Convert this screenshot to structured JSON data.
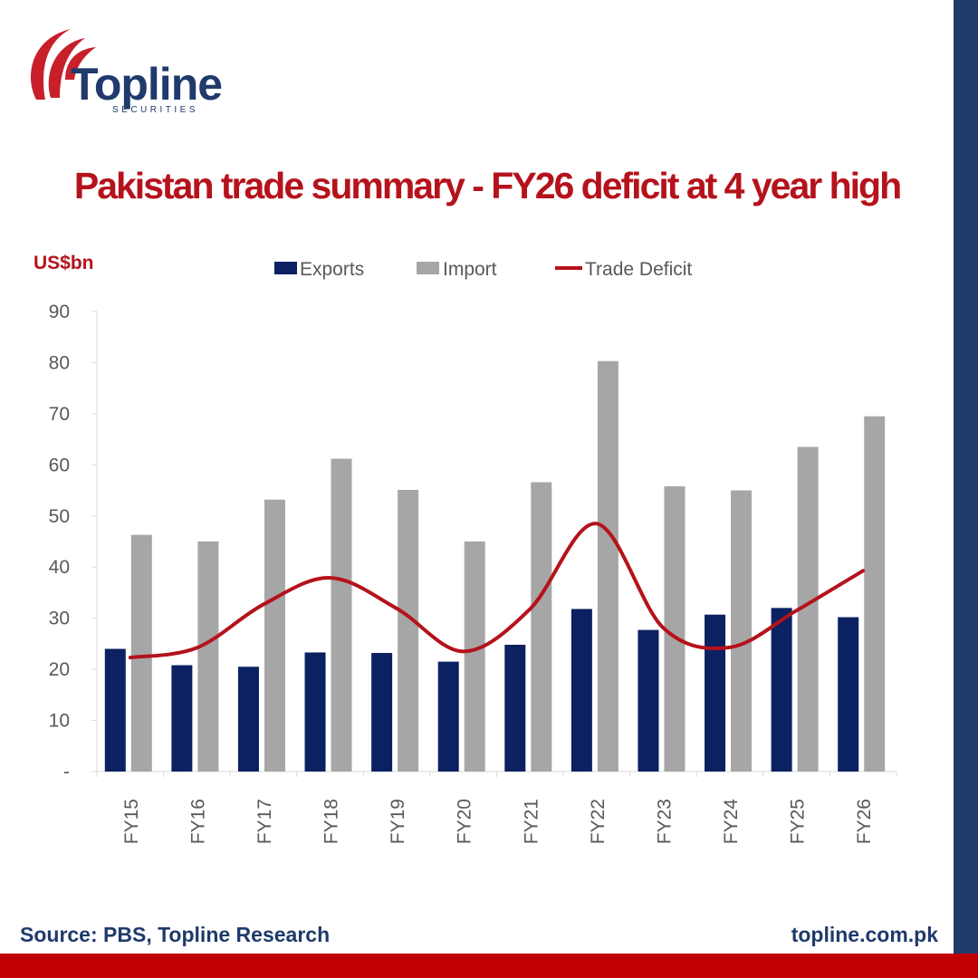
{
  "brand": {
    "logo_word": "Topline",
    "logo_sub": "SECURITIES"
  },
  "title": "Pakistan trade summary - FY26 deficit at 4 year high",
  "unit_label": "US$bn",
  "footer": {
    "source": "Source: PBS, Topline Research",
    "website": "topline.com.pk"
  },
  "colors": {
    "exports": "#0b2161",
    "imports": "#a6a6a6",
    "deficit": "#b5121b",
    "title": "#b5121b",
    "footer_text": "#1f3a6b",
    "side_bar": "#1f3a6b",
    "bottom_bar": "#c00000"
  },
  "chart_data": {
    "type": "bar",
    "categories": [
      "FY15",
      "FY16",
      "FY17",
      "FY18",
      "FY19",
      "FY20",
      "FY21",
      "FY22",
      "FY23",
      "FY24",
      "FY25",
      "FY26"
    ],
    "series": [
      {
        "name": "Exports",
        "type": "bar",
        "values": [
          24.0,
          20.8,
          20.5,
          23.3,
          23.2,
          21.5,
          24.8,
          31.8,
          27.7,
          30.7,
          32.0,
          30.2
        ]
      },
      {
        "name": "Import",
        "type": "bar",
        "values": [
          46.3,
          45.0,
          53.2,
          61.2,
          55.1,
          45.0,
          56.6,
          80.3,
          55.8,
          55.0,
          63.5,
          69.5
        ]
      },
      {
        "name": "Trade Deficit",
        "type": "line",
        "smooth": true,
        "values": [
          22.3,
          24.2,
          32.7,
          37.9,
          31.9,
          23.5,
          31.8,
          48.5,
          28.1,
          24.3,
          31.5,
          39.3
        ]
      }
    ],
    "ylim": [
      0,
      90
    ],
    "yticks": [
      0,
      10,
      20,
      30,
      40,
      50,
      60,
      70,
      80,
      90
    ],
    "ytick_labels": [
      "-",
      "10",
      "20",
      "30",
      "40",
      "50",
      "60",
      "70",
      "80",
      "90"
    ],
    "ylabel": "US$bn",
    "xlabel": "",
    "grid": false,
    "legend": "top-center"
  }
}
